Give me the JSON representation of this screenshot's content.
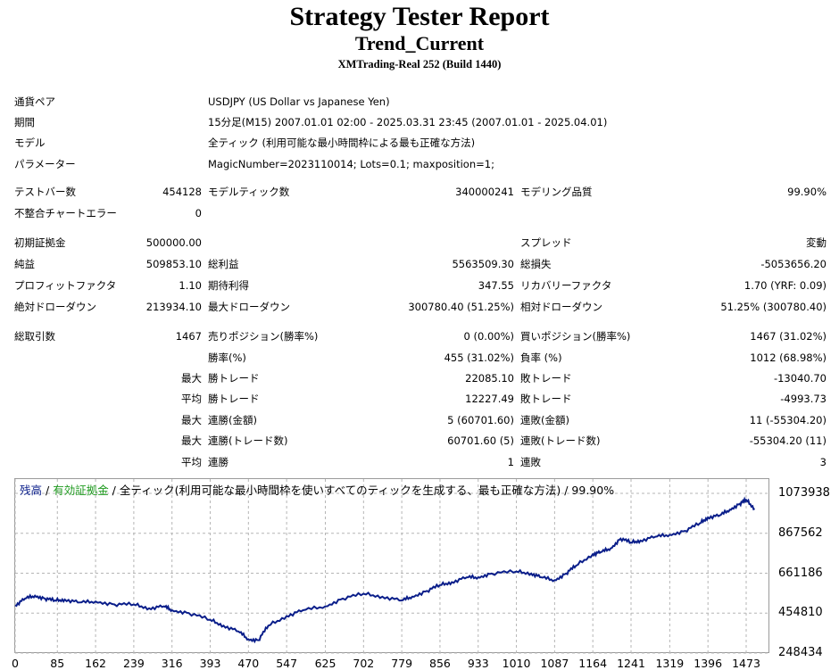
{
  "report": {
    "title": "Strategy Tester Report",
    "subtitle": "Trend_Current",
    "build": "XMTrading-Real 252 (Build 1440)"
  },
  "info": [
    {
      "label": "通貨ペア",
      "value": "USDJPY (US Dollar vs Japanese Yen)"
    },
    {
      "label": "期間",
      "value": "15分足(M15) 2007.01.01 02:00 - 2025.03.31 23:45 (2007.01.01 - 2025.04.01)"
    },
    {
      "label": "モデル",
      "value": "全ティック (利用可能な最小時間枠による最も正確な方法)"
    },
    {
      "label": "パラメーター",
      "value": "MagicNumber=2023110014; Lots=0.1; maxposition=1;"
    }
  ],
  "bars": {
    "test_bars_label": "テストバー数",
    "test_bars": "454128",
    "model_ticks_label": "モデルティック数",
    "model_ticks": "340000241",
    "quality_label": "モデリング品質",
    "quality": "99.90%",
    "mismatch_label": "不整合チャートエラー",
    "mismatch": "0"
  },
  "finance": {
    "deposit_label": "初期証拠金",
    "deposit": "500000.00",
    "spread_label": "スプレッド",
    "spread": "変動",
    "net_label": "純益",
    "net": "509853.10",
    "gross_profit_label": "総利益",
    "gross_profit": "5563509.30",
    "gross_loss_label": "総損失",
    "gross_loss": "-5053656.20",
    "pf_label": "プロフィットファクタ",
    "pf": "1.10",
    "expected_label": "期待利得",
    "expected": "347.55",
    "recovery_label": "リカバリーファクタ",
    "recovery": "1.70 (YRF: 0.09)",
    "abs_dd_label": "絶対ドローダウン",
    "abs_dd": "213934.10",
    "max_dd_label": "最大ドローダウン",
    "max_dd": "300780.40 (51.25%)",
    "rel_dd_label": "相対ドローダウン",
    "rel_dd": "51.25% (300780.40)"
  },
  "trades": {
    "total_label": "総取引数",
    "total": "1467",
    "short_label": "売りポジション(勝率%)",
    "short": "0 (0.00%)",
    "long_label": "買いポジション(勝率%)",
    "long": "1467 (31.02%)",
    "win_label": "勝率(%)",
    "win": "455 (31.02%)",
    "loss_label": "負率 (%)",
    "loss": "1012 (68.98%)",
    "max_prefix": "最大",
    "avg_prefix": "平均",
    "largest_win_label": "勝トレード",
    "largest_win": "22085.10",
    "largest_loss_label": "敗トレード",
    "largest_loss": "-13040.70",
    "avg_win_label": "勝トレード",
    "avg_win": "12227.49",
    "avg_loss_label": "敗トレード",
    "avg_loss": "-4993.73",
    "max_cons_wins_label": "連勝(金額)",
    "max_cons_wins": "5 (60701.60)",
    "max_cons_losses_label": "連敗(金額)",
    "max_cons_losses": "11 (-55304.20)",
    "max_cons_profit_label": "連勝(トレード数)",
    "max_cons_profit": "60701.60 (5)",
    "max_cons_loss_label": "連敗(トレード数)",
    "max_cons_loss": "-55304.20 (11)",
    "avg_cons_wins_label": "連勝",
    "avg_cons_wins": "1",
    "avg_cons_losses_label": "連敗",
    "avg_cons_losses": "3"
  },
  "legend": {
    "balance": "残高",
    "sep1": " / ",
    "equity": "有効証拠金",
    "sep2": " / ",
    "rest": "全ティック(利用可能な最小時間枠を使いすべてのティックを生成する、最も正確な方法) / 99.90%"
  },
  "colors": {
    "balance": "#0a1e8a",
    "equity": "#1f9a1f",
    "grid": "#b5b5b5",
    "border": "#9a9a9a"
  },
  "chart_data": {
    "type": "line",
    "ylim": [
      248434,
      1073938
    ],
    "y_ticks": [
      "1073938",
      "867562",
      "661186",
      "454810",
      "248434"
    ],
    "x_ticks": [
      "0",
      "85",
      "162",
      "239",
      "316",
      "393",
      "470",
      "547",
      "625",
      "702",
      "779",
      "856",
      "933",
      "1010",
      "1087",
      "1164",
      "1241",
      "1319",
      "1396",
      "1473"
    ],
    "xlim": [
      0,
      1473
    ],
    "series": [
      {
        "name": "残高",
        "x": [
          0,
          20,
          40,
          60,
          80,
          100,
          130,
          162,
          200,
          239,
          270,
          300,
          316,
          350,
          393,
          420,
          450,
          470,
          490,
          510,
          547,
          580,
          625,
          660,
          702,
          740,
          779,
          800,
          830,
          856,
          880,
          910,
          933,
          960,
          1010,
          1040,
          1060,
          1087,
          1110,
          1130,
          1164,
          1180,
          1200,
          1220,
          1241,
          1260,
          1290,
          1319,
          1350,
          1380,
          1396,
          1420,
          1440,
          1460,
          1473,
          1490
        ],
        "values": [
          495000,
          530000,
          545000,
          530000,
          520000,
          525000,
          510000,
          515000,
          500000,
          500000,
          480000,
          490000,
          470000,
          455000,
          420000,
          390000,
          360000,
          320000,
          315000,
          390000,
          440000,
          470000,
          490000,
          530000,
          555000,
          540000,
          520000,
          540000,
          570000,
          600000,
          615000,
          640000,
          640000,
          660000,
          670000,
          660000,
          640000,
          625000,
          660000,
          700000,
          760000,
          770000,
          790000,
          840000,
          820000,
          830000,
          850000,
          860000,
          880000,
          920000,
          950000,
          960000,
          990000,
          1020000,
          1040000,
          995000
        ]
      }
    ]
  }
}
